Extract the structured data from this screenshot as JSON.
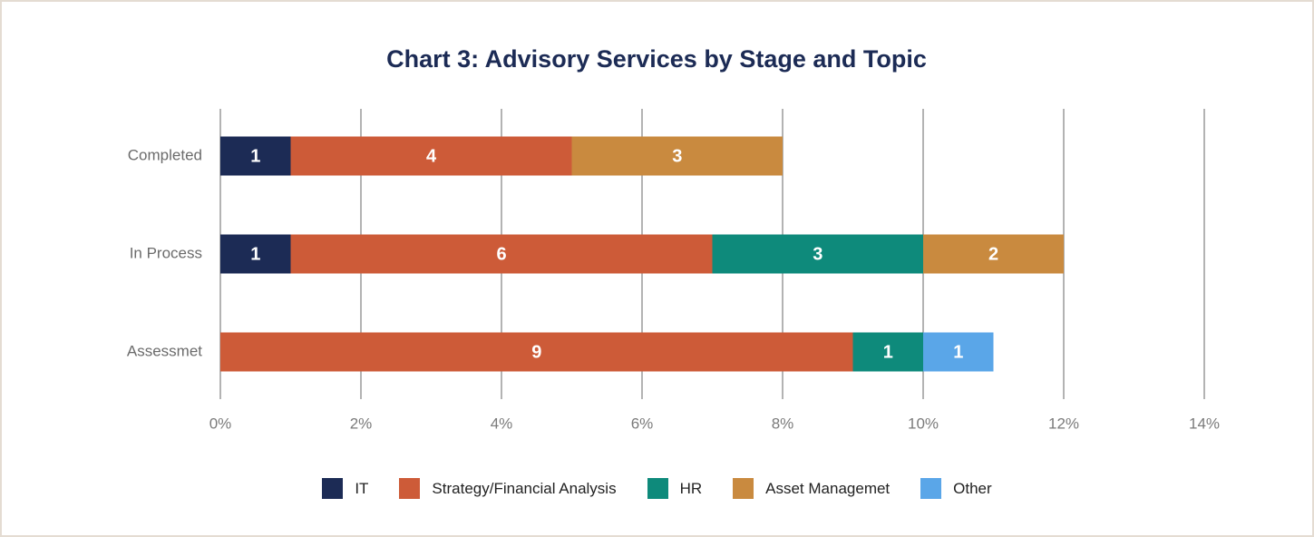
{
  "chart_data": {
    "type": "stacked-barh",
    "title": "Chart 3: Advisory Services by Stage and Topic",
    "categories": [
      "Completed",
      "In Process",
      "Assessmet"
    ],
    "series": [
      {
        "name": "IT",
        "color": "#1c2b55",
        "values": [
          1,
          1,
          null
        ]
      },
      {
        "name": "Strategy/Financial Analysis",
        "color": "#cd5b38",
        "values": [
          4,
          6,
          9
        ]
      },
      {
        "name": "HR",
        "color": "#0e8a7b",
        "values": [
          null,
          3,
          1
        ]
      },
      {
        "name": "Asset Managemet",
        "color": "#c98a3f",
        "values": [
          3,
          2,
          null
        ]
      },
      {
        "name": "Other",
        "color": "#5aa6e8",
        "values": [
          null,
          null,
          1
        ]
      }
    ],
    "xlim": [
      0,
      14
    ],
    "xticks": [
      {
        "value": 0,
        "label": "0%"
      },
      {
        "value": 2,
        "label": "2%"
      },
      {
        "value": 4,
        "label": "4%"
      },
      {
        "value": 6,
        "label": "6%"
      },
      {
        "value": 8,
        "label": "8%"
      },
      {
        "value": 10,
        "label": "10%"
      },
      {
        "value": 12,
        "label": "12%"
      },
      {
        "value": 14,
        "label": "14%"
      }
    ],
    "grid": true
  }
}
